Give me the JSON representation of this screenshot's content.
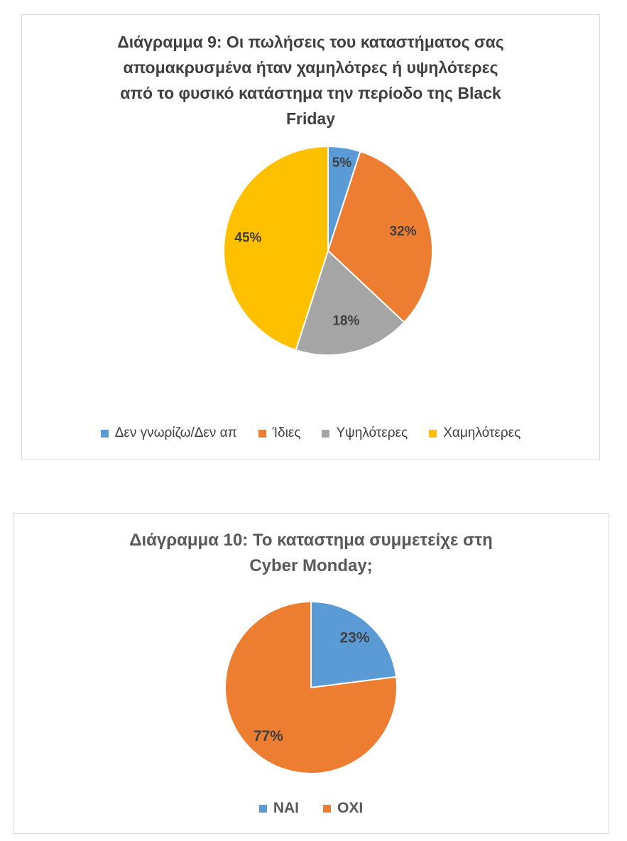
{
  "chart_data": [
    {
      "type": "pie",
      "title": "Διάγραμμα 9: Οι πωλήσεις του καταστήματος σας απομακρυσμένα ήταν χαμηλότρες ή υψηλότερες από το φυσικό κατάστημα την περίοδο της Black Friday",
      "categories": [
        "Δεν γνωρίζω/Δεν απ",
        "Ίδιες",
        "Υψηλότερες",
        "Χαμηλότερες"
      ],
      "values": [
        5,
        32,
        18,
        45
      ],
      "labels": [
        "5%",
        "32%",
        "18%",
        "45%"
      ],
      "colors": [
        "#5B9BD5",
        "#ED7D31",
        "#A5A5A5",
        "#FFC000"
      ],
      "legend_position": "bottom"
    },
    {
      "type": "pie",
      "title": "Διάγραμμα 10: Το καταστημα συμμετείχε στη Cyber Monday;",
      "categories": [
        "ΝΑΙ",
        "ΟΧΙ"
      ],
      "values": [
        23,
        77
      ],
      "labels": [
        "23%",
        "77%"
      ],
      "colors": [
        "#5B9BD5",
        "#ED7D31"
      ],
      "legend_position": "bottom"
    }
  ],
  "charts": {
    "c1": {
      "title": "Διάγραμμα 9: Οι πωλήσεις του καταστήματος σας\nαπομακρυσμένα ήταν χαμηλότρες ή υψηλότερες\nαπό το φυσικό κατάστημα την περίοδο της Black\nFriday",
      "legend": [
        "Δεν γνωρίζω/Δεν απ",
        "Ίδιες",
        "Υψηλότερες",
        "Χαμηλότερες"
      ]
    },
    "c2": {
      "title": "Διάγραμμα 10: Το καταστημα συμμετείχε στη\nCyber Monday;",
      "legend": [
        "ΝΑΙ",
        "ΟΧΙ"
      ]
    }
  }
}
